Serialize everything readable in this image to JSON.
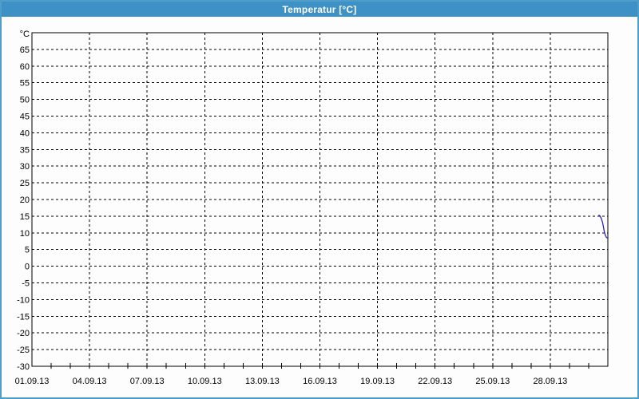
{
  "window": {
    "title": "Temperatur [°C]"
  },
  "colors": {
    "titlebar_bg": "#3e91c4",
    "titlebar_text": "#ffffff",
    "window_border": "#4f9dcb",
    "plot_bg": "#fdfdfd",
    "grid": "#000000",
    "axis": "#000000",
    "label_text": "#000000",
    "series_line": "#2424bd"
  },
  "chart_data": {
    "type": "line",
    "title": "Temperatur [°C]",
    "ylabel": "°C",
    "xlabel": "",
    "ylim": [
      -30,
      70
    ],
    "y_tick_step": 5,
    "y_ticks": [
      65,
      60,
      55,
      50,
      45,
      40,
      35,
      30,
      25,
      20,
      15,
      10,
      5,
      0,
      -5,
      -10,
      -15,
      -20,
      -25,
      -30
    ],
    "x_range_days": [
      0,
      30
    ],
    "x_tick_days": [
      0,
      3,
      6,
      9,
      12,
      15,
      18,
      21,
      24,
      27
    ],
    "x_tick_labels": [
      "01.09.13",
      "04.09.13",
      "07.09.13",
      "10.09.13",
      "13.09.13",
      "16.09.13",
      "19.09.13",
      "22.09.13",
      "25.09.13",
      "28.09.13"
    ],
    "minor_tick_every_days": 1,
    "grid": "dashed",
    "legend": "none",
    "series": [
      {
        "name": "Temperatur",
        "color": "#2424bd",
        "points_day_value": [
          [
            29.54,
            15.3
          ],
          [
            29.6,
            15.0
          ],
          [
            29.66,
            14.3
          ],
          [
            29.72,
            13.2
          ],
          [
            29.77,
            11.8
          ],
          [
            29.81,
            10.5
          ],
          [
            29.85,
            9.6
          ],
          [
            29.89,
            9.0
          ],
          [
            29.93,
            8.6
          ],
          [
            29.97,
            8.5
          ]
        ]
      }
    ]
  }
}
